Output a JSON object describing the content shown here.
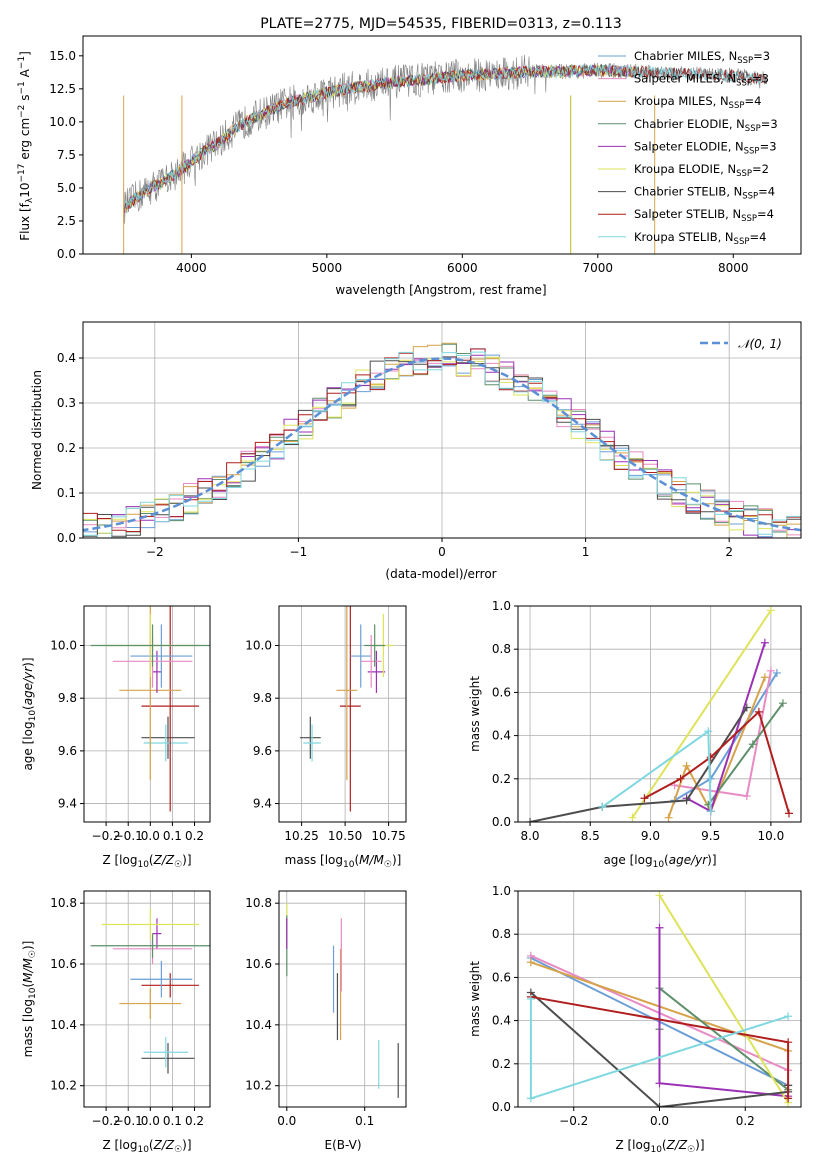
{
  "chart_data": [
    {
      "type": "line",
      "title": "PLATE=2775, MJD=54535, FIBERID=0313, z=0.113",
      "xlabel": "wavelength [Angstrom, rest frame]",
      "ylabel": "Flux [fλ10⁻¹⁷ erg cm⁻² s⁻¹ A⁻¹]",
      "xlim": [
        3200,
        8500
      ],
      "ylim": [
        0,
        16.5
      ],
      "xticks": [
        4000,
        5000,
        6000,
        7000,
        8000
      ],
      "yticks": [
        0.0,
        2.5,
        5.0,
        7.5,
        10.0,
        12.5,
        15.0
      ],
      "legend_position": "top-right",
      "data_color": "#7f7f7f",
      "data_envelope": {
        "wavelength": [
          3500,
          3600,
          3700,
          3800,
          3900,
          4000,
          4100,
          4200,
          4300,
          4400,
          4500,
          4700,
          5000,
          5200,
          5500,
          5800,
          6000,
          6200,
          6500,
          6700,
          7000,
          7300,
          7500,
          8000,
          8250
        ],
        "flux": [
          3.5,
          4.3,
          5.0,
          5.5,
          6.2,
          7.0,
          7.8,
          8.4,
          9.3,
          10.0,
          10.5,
          11.4,
          12.2,
          12.6,
          13.0,
          13.3,
          13.5,
          13.6,
          13.8,
          13.8,
          13.9,
          13.8,
          13.7,
          13.5,
          13.2
        ]
      },
      "series": [
        {
          "name": "Chabrier MILES, N$_{SSP}$=3",
          "color": "#1f77b4"
        },
        {
          "name": "Salpeter MILES, N$_{SSP}$=3",
          "color": "#d62728"
        },
        {
          "name": "Kroupa MILES, N$_{SSP}$=4",
          "color": "#ff7f0e"
        },
        {
          "name": "Chabrier ELODIE, N$_{SSP}$=3",
          "color": "#2ca02c"
        },
        {
          "name": "Salpeter ELODIE, N$_{SSP}$=3",
          "color": "#9467bd"
        },
        {
          "name": "Kroupa ELODIE, N$_{SSP}$=2",
          "color": "#bcbd22"
        },
        {
          "name": "Chabrier STELIB, N$_{SSP}$=4",
          "color": "#555555"
        },
        {
          "name": "Salpeter STELIB, N$_{SSP}$=4",
          "color": "#b22222"
        },
        {
          "name": "Kroupa STELIB, N$_{SSP}$=4",
          "color": "#7fd8e0"
        }
      ],
      "legend": {
        "entries": [
          {
            "label": "Chabrier MILES, N",
            "sub": "SSP",
            "suffix": "=3",
            "color": "#6b9ed6"
          },
          {
            "label": "Salpeter MILES, N",
            "sub": "SSP",
            "suffix": "=3",
            "color": "#e88ac4"
          },
          {
            "label": "Kroupa MILES, N",
            "sub": "SSP",
            "suffix": "=4",
            "color": "#d6a24a"
          },
          {
            "label": "Chabrier ELODIE, N",
            "sub": "SSP",
            "suffix": "=3",
            "color": "#5e8f6a"
          },
          {
            "label": "Salpeter ELODIE, N",
            "sub": "SSP",
            "suffix": "=3",
            "color": "#9b30b5"
          },
          {
            "label": "Kroupa ELODIE, N",
            "sub": "SSP",
            "suffix": "=2",
            "color": "#dde35a"
          },
          {
            "label": "Chabrier STELIB, N",
            "sub": "SSP",
            "suffix": "=4",
            "color": "#4d4d4d"
          },
          {
            "label": "Salpeter STELIB, N",
            "sub": "SSP",
            "suffix": "=4",
            "color": "#b01e1e"
          },
          {
            "label": "Kroupa STELIB, N",
            "sub": "SSP",
            "suffix": "=4",
            "color": "#7fd8e0"
          }
        ]
      }
    },
    {
      "type": "line",
      "xlabel": "(data-model)/error",
      "ylabel": "Normed distribution",
      "xlim": [
        -2.5,
        2.5
      ],
      "ylim": [
        0,
        0.48
      ],
      "xticks": [
        -2,
        -1,
        0,
        1,
        2
      ],
      "yticks": [
        0.0,
        0.1,
        0.2,
        0.3,
        0.4
      ],
      "grid": true,
      "legend_position": "top-right",
      "gaussian": {
        "label": "𝒩(0, 1)",
        "color": "#5b8fd6",
        "mean": 0,
        "sigma": 1
      },
      "histogram_colors": [
        "#6b9ed6",
        "#e88ac4",
        "#d6a24a",
        "#5e8f6a",
        "#9b30b5",
        "#dde35a",
        "#4d4d4d",
        "#b01e1e",
        "#7fd8e0"
      ]
    },
    {
      "type": "scatter",
      "xlabel": "Z [log10(Z/Z☉)]",
      "ylabel": "age  [log10(age/yr)]",
      "xlim": [
        -0.3,
        0.27
      ],
      "ylim": [
        9.33,
        10.15
      ],
      "xticks": [
        -0.2,
        -0.1,
        0.0,
        0.1,
        0.2
      ],
      "yticks": [
        9.4,
        9.6,
        9.8,
        10.0
      ],
      "grid": true,
      "points": [
        {
          "x": 0.08,
          "y": 9.65,
          "xerr": 0.12,
          "yerr": 0.08,
          "color": "#4d4d4d"
        },
        {
          "x": 0.07,
          "y": 9.63,
          "xerr": 0.1,
          "yerr": 0.07,
          "color": "#7fd8e0"
        },
        {
          "x": 0.09,
          "y": 9.77,
          "xerr": 0.13,
          "yerr": 0.4,
          "color": "#b01e1e"
        },
        {
          "x": 0.0,
          "y": 9.83,
          "xerr": 0.14,
          "yerr": 0.34,
          "color": "#d6a24a"
        },
        {
          "x": 0.03,
          "y": 9.9,
          "xerr": 0.02,
          "yerr": 0.08,
          "color": "#9b30b5"
        },
        {
          "x": 0.05,
          "y": 9.96,
          "xerr": 0.14,
          "yerr": 0.12,
          "color": "#6b9ed6"
        },
        {
          "x": 0.01,
          "y": 9.94,
          "xerr": 0.18,
          "yerr": 0.1,
          "color": "#e88ac4"
        },
        {
          "x": 0.0,
          "y": 10.0,
          "xerr": 0.22,
          "yerr": 0.12,
          "color": "#dde35a"
        },
        {
          "x": 0.01,
          "y": 10.0,
          "xerr": 0.28,
          "yerr": 0.08,
          "color": "#5e8f6a"
        }
      ]
    },
    {
      "type": "scatter",
      "xlabel": "mass [log10(M/M☉)]",
      "ylabel": "",
      "xlim": [
        10.12,
        10.85
      ],
      "ylim": [
        9.33,
        10.15
      ],
      "xticks": [
        10.25,
        10.5,
        10.75
      ],
      "yticks": [
        9.4,
        9.6,
        9.8,
        10.0
      ],
      "grid": true,
      "points": [
        {
          "x": 10.3,
          "y": 9.65,
          "xerr": 0.06,
          "yerr": 0.08,
          "color": "#4d4d4d"
        },
        {
          "x": 10.31,
          "y": 9.63,
          "xerr": 0.05,
          "yerr": 0.07,
          "color": "#7fd8e0"
        },
        {
          "x": 10.53,
          "y": 9.77,
          "xerr": 0.06,
          "yerr": 0.4,
          "color": "#b01e1e"
        },
        {
          "x": 10.51,
          "y": 9.83,
          "xerr": 0.06,
          "yerr": 0.34,
          "color": "#d6a24a"
        },
        {
          "x": 10.68,
          "y": 9.9,
          "xerr": 0.05,
          "yerr": 0.08,
          "color": "#9b30b5"
        },
        {
          "x": 10.59,
          "y": 9.96,
          "xerr": 0.06,
          "yerr": 0.12,
          "color": "#6b9ed6"
        },
        {
          "x": 10.65,
          "y": 9.94,
          "xerr": 0.06,
          "yerr": 0.1,
          "color": "#e88ac4"
        },
        {
          "x": 10.72,
          "y": 10.0,
          "xerr": 0.06,
          "yerr": 0.12,
          "color": "#dde35a"
        },
        {
          "x": 10.67,
          "y": 10.0,
          "xerr": 0.06,
          "yerr": 0.08,
          "color": "#5e8f6a"
        }
      ]
    },
    {
      "type": "line",
      "xlabel": "age  [log10(age/yr)]",
      "ylabel": "mass weight",
      "xlim": [
        7.9,
        10.25
      ],
      "ylim": [
        0,
        1.0
      ],
      "xticks": [
        8.0,
        8.5,
        9.0,
        9.5,
        10.0
      ],
      "yticks": [
        0.0,
        0.2,
        0.4,
        0.6,
        0.8,
        1.0
      ],
      "grid": true,
      "series": [
        {
          "name": "Chabrier MILES",
          "color": "#6b9ed6",
          "x": [
            9.2,
            9.5,
            10.05
          ],
          "y": [
            0.1,
            0.2,
            0.69
          ]
        },
        {
          "name": "Salpeter MILES",
          "color": "#e88ac4",
          "x": [
            9.2,
            9.8,
            10.0
          ],
          "y": [
            0.17,
            0.12,
            0.7
          ]
        },
        {
          "name": "Kroupa MILES",
          "color": "#d6a24a",
          "x": [
            9.15,
            9.3,
            9.5,
            9.95
          ],
          "y": [
            0.02,
            0.26,
            0.05,
            0.67
          ]
        },
        {
          "name": "Chabrier ELODIE",
          "color": "#5e8f6a",
          "x": [
            9.48,
            9.85,
            10.1
          ],
          "y": [
            0.08,
            0.36,
            0.55
          ]
        },
        {
          "name": "Salpeter ELODIE",
          "color": "#9b30b5",
          "x": [
            9.3,
            9.5,
            9.95
          ],
          "y": [
            0.11,
            0.05,
            0.83
          ]
        },
        {
          "name": "Kroupa ELODIE",
          "color": "#dde35a",
          "x": [
            8.85,
            10.0
          ],
          "y": [
            0.02,
            0.98
          ]
        },
        {
          "name": "Chabrier STELIB",
          "color": "#4d4d4d",
          "x": [
            8.0,
            8.6,
            9.3,
            9.8
          ],
          "y": [
            0.0,
            0.07,
            0.1,
            0.53
          ]
        },
        {
          "name": "Salpeter STELIB",
          "color": "#b01e1e",
          "x": [
            8.95,
            9.25,
            9.5,
            9.9,
            10.15
          ],
          "y": [
            0.11,
            0.2,
            0.3,
            0.51,
            0.04
          ]
        },
        {
          "name": "Kroupa STELIB",
          "color": "#7fd8e0",
          "x": [
            8.6,
            9.48,
            9.5
          ],
          "y": [
            0.07,
            0.42,
            0.05
          ]
        }
      ]
    },
    {
      "type": "scatter",
      "xlabel": "Z [log10(Z/Z☉)]",
      "ylabel": "mass [log10(M/M☉)]",
      "xlim": [
        -0.3,
        0.27
      ],
      "ylim": [
        10.13,
        10.84
      ],
      "xticks": [
        -0.2,
        -0.1,
        0.0,
        0.1,
        0.2
      ],
      "yticks": [
        10.2,
        10.4,
        10.6,
        10.8
      ],
      "grid": true,
      "points": [
        {
          "x": 0.08,
          "y": 10.29,
          "xerr": 0.12,
          "yerr": 0.05,
          "color": "#4d4d4d"
        },
        {
          "x": 0.07,
          "y": 10.31,
          "xerr": 0.1,
          "yerr": 0.05,
          "color": "#7fd8e0"
        },
        {
          "x": 0.09,
          "y": 10.53,
          "xerr": 0.13,
          "yerr": 0.04,
          "color": "#b01e1e"
        },
        {
          "x": 0.0,
          "y": 10.47,
          "xerr": 0.14,
          "yerr": 0.05,
          "color": "#d6a24a"
        },
        {
          "x": 0.03,
          "y": 10.7,
          "xerr": 0.02,
          "yerr": 0.05,
          "color": "#9b30b5"
        },
        {
          "x": 0.05,
          "y": 10.55,
          "xerr": 0.14,
          "yerr": 0.06,
          "color": "#6b9ed6"
        },
        {
          "x": 0.01,
          "y": 10.65,
          "xerr": 0.18,
          "yerr": 0.05,
          "color": "#e88ac4"
        },
        {
          "x": 0.0,
          "y": 10.73,
          "xerr": 0.22,
          "yerr": 0.05,
          "color": "#dde35a"
        },
        {
          "x": 0.01,
          "y": 10.66,
          "xerr": 0.28,
          "yerr": 0.04,
          "color": "#5e8f6a"
        }
      ]
    },
    {
      "type": "scatter",
      "xlabel": "E(B-V)",
      "ylabel": "",
      "xlim": [
        -0.01,
        0.153
      ],
      "ylim": [
        10.13,
        10.84
      ],
      "xticks": [
        0.0,
        0.1
      ],
      "yticks": [
        10.2,
        10.4,
        10.6,
        10.8
      ],
      "grid": true,
      "points": [
        {
          "x": 0.0,
          "y": 10.73,
          "yerr": 0.07,
          "color": "#dde35a"
        },
        {
          "x": 0.0,
          "y": 10.66,
          "yerr": 0.1,
          "color": "#5e8f6a"
        },
        {
          "x": 0.0,
          "y": 10.7,
          "yerr": 0.05,
          "color": "#9b30b5"
        },
        {
          "x": 0.06,
          "y": 10.55,
          "yerr": 0.11,
          "color": "#6b9ed6"
        },
        {
          "x": 0.065,
          "y": 10.46,
          "yerr": 0.11,
          "color": "#4d4d4d"
        },
        {
          "x": 0.069,
          "y": 10.5,
          "yerr": 0.15,
          "color": "#d6a24a"
        },
        {
          "x": 0.07,
          "y": 10.63,
          "yerr": 0.12,
          "color": "#e88ac4"
        },
        {
          "x": 0.118,
          "y": 10.27,
          "yerr": 0.08,
          "color": "#7fd8e0"
        },
        {
          "x": 0.143,
          "y": 10.25,
          "yerr": 0.09,
          "color": "#4d4d4d"
        }
      ]
    },
    {
      "type": "line",
      "xlabel": "Z [log10(Z/Z☉)]",
      "ylabel": "mass weight",
      "xlim": [
        -0.33,
        0.33
      ],
      "ylim": [
        0,
        1.0
      ],
      "xticks": [
        -0.2,
        0.0,
        0.2
      ],
      "yticks": [
        0.0,
        0.2,
        0.4,
        0.6,
        0.8,
        1.0
      ],
      "grid": true,
      "series": [
        {
          "name": "Chabrier MILES",
          "color": "#6b9ed6",
          "x": [
            -0.3,
            0.3
          ],
          "y": [
            0.69,
            0.1
          ]
        },
        {
          "name": "Salpeter MILES",
          "color": "#e88ac4",
          "x": [
            -0.3,
            0.3
          ],
          "y": [
            0.7,
            0.17
          ]
        },
        {
          "name": "Kroupa MILES",
          "color": "#d6a24a",
          "x": [
            -0.3,
            0.3
          ],
          "y": [
            0.67,
            0.26
          ]
        },
        {
          "name": "Chabrier ELODIE",
          "color": "#5e8f6a",
          "x": [
            0.0,
            0.0,
            0.3
          ],
          "y": [
            0.36,
            0.55,
            0.08
          ]
        },
        {
          "name": "Salpeter ELODIE",
          "color": "#9b30b5",
          "x": [
            0.0,
            0.0,
            0.3
          ],
          "y": [
            0.83,
            0.11,
            0.05
          ]
        },
        {
          "name": "Kroupa ELODIE",
          "color": "#dde35a",
          "x": [
            0.0,
            0.3
          ],
          "y": [
            0.98,
            0.02
          ]
        },
        {
          "name": "Chabrier STELIB",
          "color": "#4d4d4d",
          "x": [
            -0.3,
            0.0,
            0.3,
            0.3
          ],
          "y": [
            0.53,
            0.0,
            0.07,
            0.1
          ]
        },
        {
          "name": "Salpeter STELIB",
          "color": "#b01e1e",
          "x": [
            -0.3,
            0.3,
            0.3
          ],
          "y": [
            0.51,
            0.3,
            0.04
          ]
        },
        {
          "name": "Kroupa STELIB",
          "color": "#7fd8e0",
          "x": [
            -0.3,
            -0.3,
            0.3
          ],
          "y": [
            0.5,
            0.04,
            0.42
          ]
        }
      ]
    }
  ]
}
